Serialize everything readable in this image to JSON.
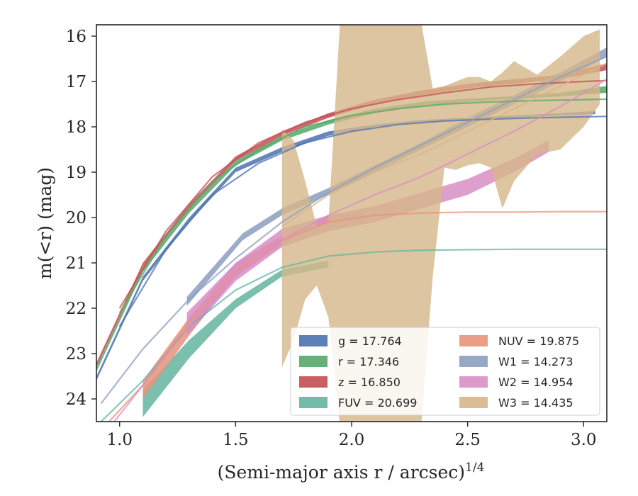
{
  "chart_data": {
    "type": "line",
    "xlabel": "(Semi-major axis r / arcsec)",
    "xlabel_exp": "1/4",
    "ylabel": "m(<r) (mag)",
    "xlim": [
      0.9,
      3.1
    ],
    "ylim": [
      24.5,
      15.75
    ],
    "y_inverted": true,
    "x_ticks": [
      "1.0",
      "1.5",
      "2.0",
      "2.5",
      "3.0"
    ],
    "y_ticks": [
      "16",
      "17",
      "18",
      "19",
      "20",
      "21",
      "22",
      "23",
      "24"
    ],
    "grid": false,
    "legend_position": "lower-right",
    "series": [
      {
        "name": "g",
        "legend": "g = 17.764",
        "color": "#4c72b0",
        "obs_x": [
          0.9,
          1.1,
          1.3,
          1.5,
          1.7,
          1.9,
          2.1,
          2.3,
          2.5,
          2.7,
          2.9,
          3.05
        ],
        "obs_lo": [
          23.6,
          21.4,
          20.1,
          19.0,
          18.55,
          18.2,
          18.0,
          17.9,
          17.85,
          17.8,
          17.75,
          17.72
        ],
        "obs_hi": [
          23.5,
          21.3,
          20.0,
          18.9,
          18.45,
          18.1,
          17.95,
          17.85,
          17.8,
          17.75,
          17.7,
          17.65
        ],
        "model_x": [
          1.0,
          1.2,
          1.4,
          1.6,
          1.8,
          2.0,
          2.2,
          2.4,
          2.6,
          2.8,
          3.0,
          3.1
        ],
        "model_y": [
          22.4,
          20.7,
          19.5,
          18.8,
          18.35,
          18.1,
          17.95,
          17.87,
          17.83,
          17.8,
          17.78,
          17.77
        ]
      },
      {
        "name": "r",
        "legend": "r = 17.346",
        "color": "#55a868",
        "obs_x": [
          0.9,
          1.1,
          1.3,
          1.5,
          1.7,
          1.9,
          2.1,
          2.3,
          2.5,
          2.7,
          2.9,
          3.1
        ],
        "obs_lo": [
          23.4,
          21.2,
          19.9,
          18.85,
          18.3,
          17.95,
          17.7,
          17.55,
          17.45,
          17.38,
          17.33,
          17.25
        ],
        "obs_hi": [
          23.3,
          21.1,
          19.8,
          18.75,
          18.2,
          17.85,
          17.6,
          17.45,
          17.38,
          17.32,
          17.25,
          17.1
        ],
        "model_x": [
          1.0,
          1.2,
          1.4,
          1.6,
          1.8,
          2.0,
          2.2,
          2.4,
          2.6,
          2.8,
          3.0,
          3.1
        ],
        "model_y": [
          22.1,
          20.4,
          19.2,
          18.5,
          18.0,
          17.75,
          17.6,
          17.5,
          17.45,
          17.42,
          17.4,
          17.39
        ]
      },
      {
        "name": "z",
        "legend": "z = 16.850",
        "color": "#c44e52",
        "obs_x": [
          0.9,
          1.1,
          1.3,
          1.5,
          1.7,
          1.9,
          2.1,
          2.3,
          2.5,
          2.7,
          2.9,
          3.1
        ],
        "obs_lo": [
          23.3,
          21.1,
          19.8,
          18.75,
          18.2,
          17.8,
          17.5,
          17.3,
          17.15,
          17.05,
          16.95,
          16.75
        ],
        "obs_hi": [
          23.2,
          21.0,
          19.7,
          18.65,
          18.1,
          17.7,
          17.4,
          17.2,
          17.05,
          16.95,
          16.85,
          16.6
        ],
        "model_x": [
          1.0,
          1.2,
          1.4,
          1.6,
          1.8,
          2.0,
          2.2,
          2.4,
          2.6,
          2.8,
          3.0,
          3.1
        ],
        "model_y": [
          22.0,
          20.3,
          19.1,
          18.35,
          17.9,
          17.6,
          17.4,
          17.25,
          17.12,
          17.05,
          17.0,
          16.98
        ]
      },
      {
        "name": "FUV",
        "legend": "FUV = 20.699",
        "color": "#64b5a0",
        "obs_x": [
          1.1,
          1.3,
          1.5,
          1.7,
          1.9
        ],
        "obs_lo": [
          24.4,
          23.1,
          22.0,
          21.3,
          21.1
        ],
        "obs_hi": [
          23.8,
          22.7,
          21.8,
          21.15,
          20.95
        ],
        "model_x": [
          0.9,
          1.1,
          1.3,
          1.5,
          1.7,
          1.9,
          2.1,
          2.3,
          2.5,
          2.7,
          2.9,
          3.1
        ],
        "model_y": [
          24.6,
          23.6,
          22.4,
          21.6,
          21.1,
          20.85,
          20.76,
          20.72,
          20.71,
          20.7,
          20.7,
          20.7
        ]
      },
      {
        "name": "NUV",
        "legend": "NUV = 19.875",
        "color": "#e8937a",
        "obs_x": [
          1.1,
          1.3,
          1.5,
          1.7,
          1.9,
          2.05
        ],
        "obs_lo": [
          24.0,
          22.6,
          21.3,
          20.6,
          20.1,
          20.0
        ],
        "obs_hi": [
          23.6,
          22.2,
          21.0,
          20.4,
          19.95,
          19.9
        ],
        "model_x": [
          0.9,
          1.1,
          1.3,
          1.5,
          1.7,
          1.9,
          2.1,
          2.3,
          2.5,
          2.7,
          2.9,
          3.1
        ],
        "model_y": [
          24.8,
          23.7,
          22.3,
          21.2,
          20.5,
          20.1,
          19.95,
          19.9,
          19.88,
          19.88,
          19.87,
          19.87
        ]
      },
      {
        "name": "W1",
        "legend": "W1 = 14.273",
        "color": "#8c9dc0",
        "obs_x": [
          1.29,
          1.53,
          1.7,
          1.9,
          2.1,
          2.3,
          2.5,
          2.7,
          2.9,
          3.1
        ],
        "obs_lo": [
          21.95,
          20.5,
          19.95,
          19.5,
          19.0,
          18.5,
          18.0,
          17.5,
          17.0,
          16.45
        ],
        "obs_hi": [
          21.75,
          20.35,
          19.8,
          19.35,
          18.85,
          18.35,
          17.8,
          17.3,
          16.8,
          16.25
        ],
        "model_x": [
          0.92,
          1.1,
          1.3,
          1.5,
          1.7,
          1.9,
          2.1,
          2.3,
          2.5,
          2.7,
          2.9,
          3.1
        ],
        "model_y": [
          24.1,
          22.9,
          21.8,
          20.9,
          20.1,
          19.45,
          18.9,
          18.4,
          17.9,
          17.4,
          16.9,
          16.45
        ]
      },
      {
        "name": "W2",
        "legend": "W2 = 14.954",
        "color": "#d98ec4",
        "obs_x": [
          1.29,
          1.5,
          1.7,
          1.9,
          2.1,
          2.3,
          2.5,
          2.7,
          2.85
        ],
        "obs_lo": [
          22.6,
          21.4,
          20.65,
          20.3,
          20.1,
          19.8,
          19.5,
          19.0,
          18.55
        ],
        "obs_hi": [
          22.1,
          21.0,
          20.25,
          19.95,
          19.75,
          19.45,
          19.15,
          18.7,
          18.3
        ],
        "model_x": [
          0.9,
          1.1,
          1.3,
          1.5,
          1.7,
          1.9,
          2.1,
          2.3,
          2.5,
          2.7,
          2.9,
          3.1
        ],
        "model_y": [
          25.0,
          23.7,
          22.4,
          21.3,
          20.5,
          19.95,
          19.5,
          19.1,
          18.6,
          18.1,
          17.55,
          16.95
        ]
      },
      {
        "name": "W3",
        "legend": "W3 = 14.435",
        "color": "#d6b68a",
        "obs_x": [
          1.7,
          1.75,
          1.8,
          1.85,
          1.9,
          1.95,
          2.0,
          2.1,
          2.2,
          2.3,
          2.35,
          2.4,
          2.45,
          2.5,
          2.55,
          2.6,
          2.65,
          2.7,
          2.8,
          2.9,
          3.0,
          3.07
        ],
        "obs_lo": [
          23.3,
          22.7,
          21.8,
          21.5,
          22.2,
          24.6,
          24.6,
          24.6,
          24.6,
          24.6,
          21.3,
          18.9,
          18.95,
          18.85,
          18.8,
          18.9,
          19.8,
          19.2,
          18.6,
          18.5,
          18.0,
          17.5
        ],
        "obs_hi": [
          18.05,
          18.3,
          19.2,
          20.2,
          20.1,
          15.7,
          15.7,
          15.7,
          15.7,
          15.7,
          17.15,
          17.1,
          17.0,
          16.9,
          16.9,
          17.0,
          16.8,
          16.55,
          16.85,
          16.45,
          16.0,
          15.85
        ],
        "model_x": [
          1.7,
          1.9,
          2.1,
          2.3,
          2.5,
          2.7,
          2.9,
          3.1
        ],
        "model_y": [
          20.2,
          19.5,
          19.0,
          18.6,
          18.1,
          17.6,
          17.1,
          16.6
        ]
      }
    ]
  }
}
